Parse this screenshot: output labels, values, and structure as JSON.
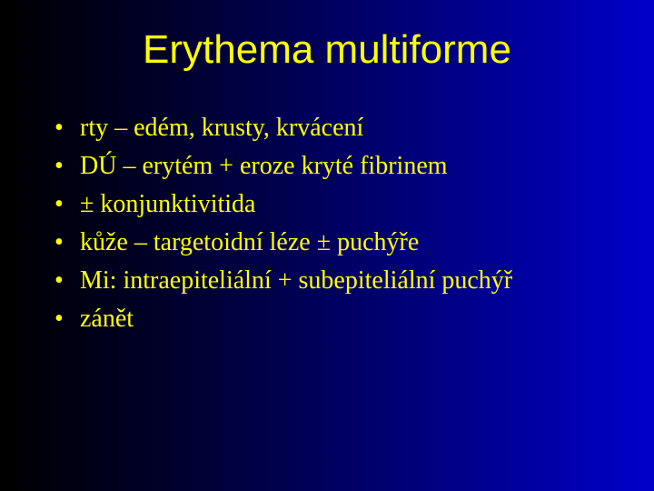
{
  "slide": {
    "title": "Erythema multiforme",
    "title_color": "#ffff00",
    "title_fontsize": 44,
    "text_color": "#ffff00",
    "text_fontsize": 28,
    "background_gradient": {
      "direction": "to right",
      "stops": [
        "#000000",
        "#000033",
        "#000088",
        "#0000cc"
      ]
    },
    "bullets": [
      "rty – edém, krusty, krvácení",
      "DÚ – erytém + eroze kryté fibrinem",
      "± konjunktivitida",
      "kůže – targetoidní léze ± puchýře",
      "Mi: intraepiteliální + subepiteliální puchýř",
      "zánět"
    ],
    "bullet_marker": "•"
  }
}
